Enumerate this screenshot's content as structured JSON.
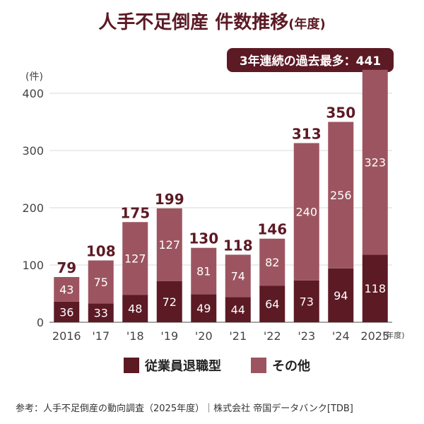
{
  "title_main": "人手不足倒産 件数推移",
  "title_suffix": "(年度)",
  "callout": "3年連続の過去最多：441",
  "footer": "参考：人手不足倒産の動向調査（2025年度）｜株式会社 帝国データバンク[TDB]",
  "colors": {
    "dark": "#5c1a25",
    "light": "#9c5560",
    "text": "#5c1a25"
  },
  "chart_data": {
    "type": "bar",
    "stacked": true,
    "ylabel": "(件)",
    "xunit": "(年度)",
    "ylim": [
      0,
      400
    ],
    "yticks": [
      "0",
      "100",
      "200",
      "300",
      "400"
    ],
    "ytick_values": [
      0,
      100,
      200,
      300,
      400
    ],
    "categories": [
      "2016",
      "'17",
      "'18",
      "'19",
      "'20",
      "'21",
      "'22",
      "'23",
      "'24",
      "2025"
    ],
    "totals": [
      79,
      108,
      175,
      199,
      130,
      118,
      146,
      313,
      350,
      441
    ],
    "series": [
      {
        "name": "従業員退職型",
        "values": [
          36,
          33,
          48,
          72,
          49,
          44,
          64,
          73,
          94,
          118
        ],
        "color": "#5c1a25"
      },
      {
        "name": "その他",
        "values": [
          43,
          75,
          127,
          127,
          81,
          74,
          82,
          240,
          256,
          323
        ],
        "color": "#9c5560"
      }
    ],
    "legend_position": "bottom"
  }
}
